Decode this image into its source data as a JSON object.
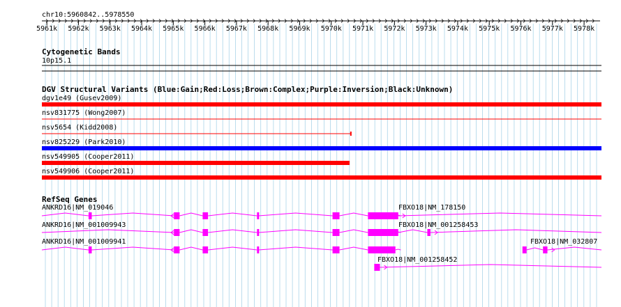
{
  "ruler": {
    "location": "chr10:5960842..5978550",
    "tick_labels": [
      "5961k",
      "5962k",
      "5963k",
      "5964k",
      "5965k",
      "5966k",
      "5967k",
      "5968k",
      "5969k",
      "5970k",
      "5971k",
      "5972k",
      "5973k",
      "5974k",
      "5975k",
      "5976k",
      "5977k",
      "5978k"
    ]
  },
  "tracks": {
    "cytoband": {
      "title": "Cytogenetic Bands",
      "band_label": "10p15.1"
    },
    "dgv": {
      "title": "DGV Structural Variants (Blue:Gain;Red:Loss;Brown:Complex;Purple:Inversion;Black:Unknown)",
      "variants": [
        {
          "label": "dgv1e49 (Gusev2009)",
          "color": "#ff0000",
          "style": "thick",
          "start": 5960842,
          "end": 5978550
        },
        {
          "label": "nsv831775 (Wong2007)",
          "color": "#ff0000",
          "style": "thin",
          "start": 5960842,
          "end": 5978550
        },
        {
          "label": "nsv5654 (Kidd2008)",
          "color": "#ff0000",
          "style": "thin-capped",
          "start": 5960842,
          "end": 5970620
        },
        {
          "label": "nsv825229 (Park2010)",
          "color": "#0000ff",
          "style": "thick",
          "start": 5960842,
          "end": 5978550
        },
        {
          "label": "nsv549905 (Cooper2011)",
          "color": "#ff0000",
          "style": "thick",
          "start": 5960842,
          "end": 5970580
        },
        {
          "label": "nsv549906 (Cooper2011)",
          "color": "#ff0000",
          "style": "thick",
          "start": 5960842,
          "end": 5978550
        }
      ]
    },
    "refseq": {
      "title": "RefSeq Genes",
      "color": "#ff00ff",
      "genes": [
        {
          "label": "ANKRD16|NM_019046",
          "start": 5960842,
          "end": 5972200,
          "strand": "-",
          "exons": [
            [
              5962320,
              5962420
            ],
            [
              5965020,
              5965200
            ],
            [
              5965930,
              5966100
            ],
            [
              5967650,
              5967700
            ],
            [
              5970040,
              5970260
            ],
            [
              5971160,
              5972030
            ]
          ]
        },
        {
          "label": "FBXO18|NM_178150",
          "start": 5972000,
          "end": 5978550,
          "strand": "+",
          "exons": [
            [
              5972000,
              5972120
            ]
          ]
        },
        {
          "label": "ANKRD16|NM_001009943",
          "start": 5960842,
          "end": 5972200,
          "strand": "-",
          "exons": [
            [
              5965020,
              5965200
            ],
            [
              5965930,
              5966100
            ],
            [
              5967650,
              5967700
            ],
            [
              5970040,
              5970260
            ],
            [
              5971160,
              5972030
            ]
          ]
        },
        {
          "label": "FBXO18|NM_001258453",
          "start": 5972000,
          "end": 5978550,
          "strand": "+",
          "exons": [
            [
              5972000,
              5972120
            ],
            [
              5973040,
              5973140
            ]
          ]
        },
        {
          "label": "ANKRD16|NM_001009941",
          "start": 5960842,
          "end": 5972200,
          "strand": "-",
          "exons": [
            [
              5962320,
              5962420
            ],
            [
              5965020,
              5965200
            ],
            [
              5965930,
              5966100
            ],
            [
              5967650,
              5967700
            ],
            [
              5970040,
              5970260
            ],
            [
              5971160,
              5972030
            ]
          ]
        },
        {
          "label": "FBXO18|NM_032807",
          "start": 5976050,
          "end": 5978550,
          "strand": "+",
          "exons": [
            [
              5976050,
              5976180
            ],
            [
              5976700,
              5976840
            ]
          ]
        },
        {
          "label": "FBXO18|NM_001258452",
          "start": 5971360,
          "end": 5978550,
          "strand": "+",
          "exons": [
            [
              5971360,
              5971540
            ]
          ]
        }
      ]
    }
  }
}
